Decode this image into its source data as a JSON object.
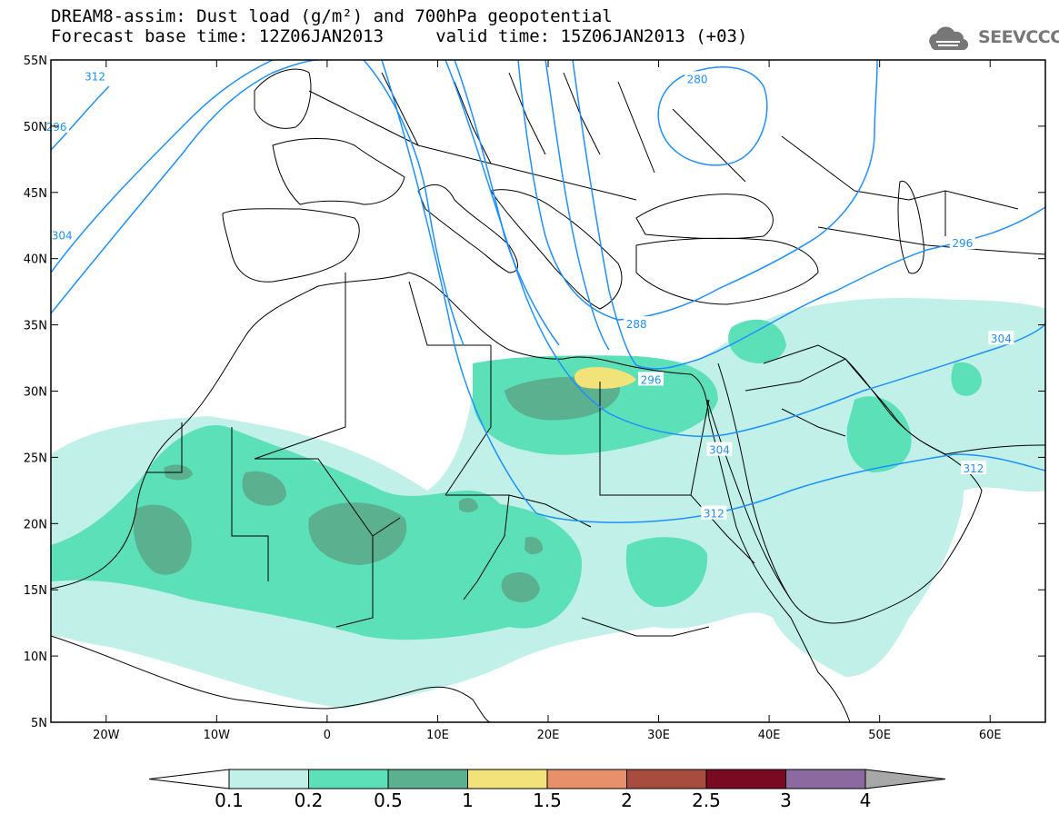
{
  "title": {
    "line1": "DREAM8-assim: Dust load (g/m²) and 700hPa geopotential",
    "line2": "Forecast base time: 12Z06JAN2013     valid time: 15Z06JAN2013 (+03)"
  },
  "logo": {
    "text": "SEEVCCC",
    "icon": "cloud-icon"
  },
  "map": {
    "lon_range": [
      -25,
      65
    ],
    "lat_range": [
      5,
      55
    ],
    "lon_ticks": [
      {
        "lon": -20,
        "label": "20W"
      },
      {
        "lon": -10,
        "label": "10W"
      },
      {
        "lon": 0,
        "label": "0"
      },
      {
        "lon": 10,
        "label": "10E"
      },
      {
        "lon": 20,
        "label": "20E"
      },
      {
        "lon": 30,
        "label": "30E"
      },
      {
        "lon": 40,
        "label": "40E"
      },
      {
        "lon": 50,
        "label": "50E"
      },
      {
        "lon": 60,
        "label": "60E"
      }
    ],
    "lat_ticks": [
      {
        "lat": 55,
        "label": "55N"
      },
      {
        "lat": 50,
        "label": "50N"
      },
      {
        "lat": 45,
        "label": "45N"
      },
      {
        "lat": 40,
        "label": "40N"
      },
      {
        "lat": 35,
        "label": "35N"
      },
      {
        "lat": 30,
        "label": "30N"
      },
      {
        "lat": 25,
        "label": "25N"
      },
      {
        "lat": 20,
        "label": "20N"
      },
      {
        "lat": 15,
        "label": "15N"
      },
      {
        "lat": 10,
        "label": "10N"
      },
      {
        "lat": 5,
        "label": "5N"
      }
    ],
    "contour_labels": [
      {
        "lon": -21,
        "lat": 53.8,
        "text": "312"
      },
      {
        "lon": -24.5,
        "lat": 50,
        "text": "296"
      },
      {
        "lon": -24,
        "lat": 41.8,
        "text": "304"
      },
      {
        "lon": 33.5,
        "lat": 53.6,
        "text": "280"
      },
      {
        "lon": 57.5,
        "lat": 41.2,
        "text": "296"
      },
      {
        "lon": 28,
        "lat": 35.1,
        "text": "288"
      },
      {
        "lon": 29.3,
        "lat": 30.9,
        "text": "296"
      },
      {
        "lon": 61,
        "lat": 34,
        "text": "304"
      },
      {
        "lon": 35.5,
        "lat": 25.6,
        "text": "304"
      },
      {
        "lon": 58.5,
        "lat": 24.2,
        "text": "312"
      },
      {
        "lon": 35,
        "lat": 20.8,
        "text": "312"
      }
    ]
  },
  "colorbar": {
    "colors": [
      "#c0f0e8",
      "#5be0b8",
      "#5ab08f",
      "#f2e27a",
      "#e8906a",
      "#a84c40",
      "#7a0a22",
      "#8c6aa0"
    ],
    "under_color": "#ffffff",
    "over_color": "#a8a8a8",
    "labels": [
      "0.1",
      "0.2",
      "0.5",
      "1",
      "1.5",
      "2",
      "2.5",
      "3",
      "4"
    ]
  },
  "colors": {
    "contour": "#1e90ff",
    "land_outline": "#000000"
  }
}
